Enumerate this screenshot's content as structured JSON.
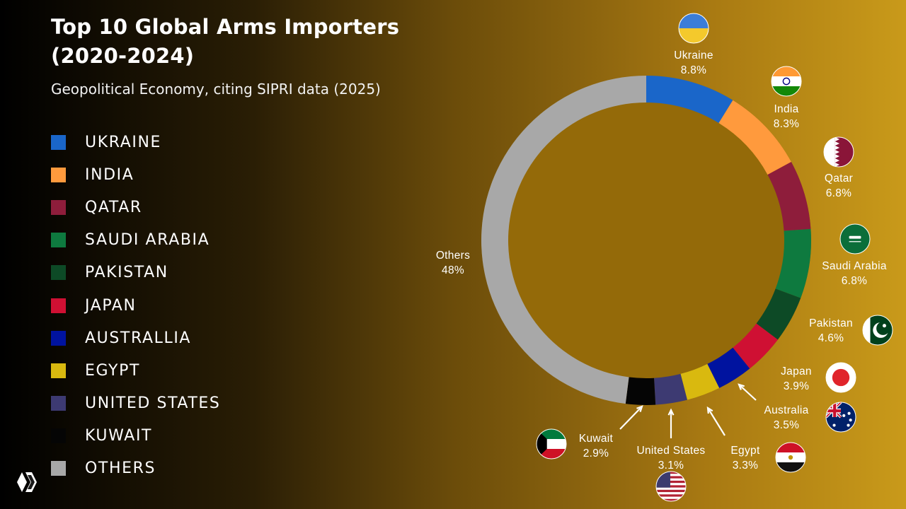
{
  "title": "Top 10 Global Arms Importers (2020-2024)",
  "subtitle": "Geopolitical Economy, citing SIPRI data (2025)",
  "legend": [
    {
      "label": "UKRAINE",
      "color": "#1a66c9"
    },
    {
      "label": "INDIA",
      "color": "#ff9a3d"
    },
    {
      "label": "QATAR",
      "color": "#8e1d3b"
    },
    {
      "label": "SAUDI ARABIA",
      "color": "#0e7a3f"
    },
    {
      "label": "PAKISTAN",
      "color": "#0d4a26"
    },
    {
      "label": "JAPAN",
      "color": "#cf1033"
    },
    {
      "label": "AUSTRALLIA",
      "color": "#00139f"
    },
    {
      "label": "EGYPT",
      "color": "#d9b90f"
    },
    {
      "label": "UNITED STATES",
      "color": "#3d3a72"
    },
    {
      "label": "KUWAIT",
      "color": "#050505"
    },
    {
      "label": "OTHERS",
      "color": "#a8a8a8"
    }
  ],
  "chart_data": {
    "type": "pie",
    "donut": true,
    "categories": [
      "Ukraine",
      "India",
      "Qatar",
      "Saudi Arabia",
      "Pakistan",
      "Japan",
      "Australia",
      "Egypt",
      "United States",
      "Kuwait",
      "Others"
    ],
    "values": [
      8.8,
      8.3,
      6.8,
      6.8,
      4.6,
      3.9,
      3.5,
      3.3,
      3.1,
      2.9,
      48
    ],
    "value_labels": [
      "8.8%",
      "8.3%",
      "6.8%",
      "6.8%",
      "4.6%",
      "3.9%",
      "3.5%",
      "3.3%",
      "3.1%",
      "2.9%",
      "48%"
    ],
    "colors": [
      "#1a66c9",
      "#ff9a3d",
      "#8e1d3b",
      "#0e7a3f",
      "#0d4a26",
      "#cf1033",
      "#00139f",
      "#d9b90f",
      "#3d3a72",
      "#050505",
      "#a8a8a8"
    ],
    "flag_icons": [
      "ukraine-flag-icon",
      "india-flag-icon",
      "qatar-flag-icon",
      "saudi-arabia-flag-icon",
      "pakistan-flag-icon",
      "japan-flag-icon",
      "australia-flag-icon",
      "egypt-flag-icon",
      "united-states-flag-icon",
      "kuwait-flag-icon",
      null
    ],
    "legend_position": "left"
  }
}
